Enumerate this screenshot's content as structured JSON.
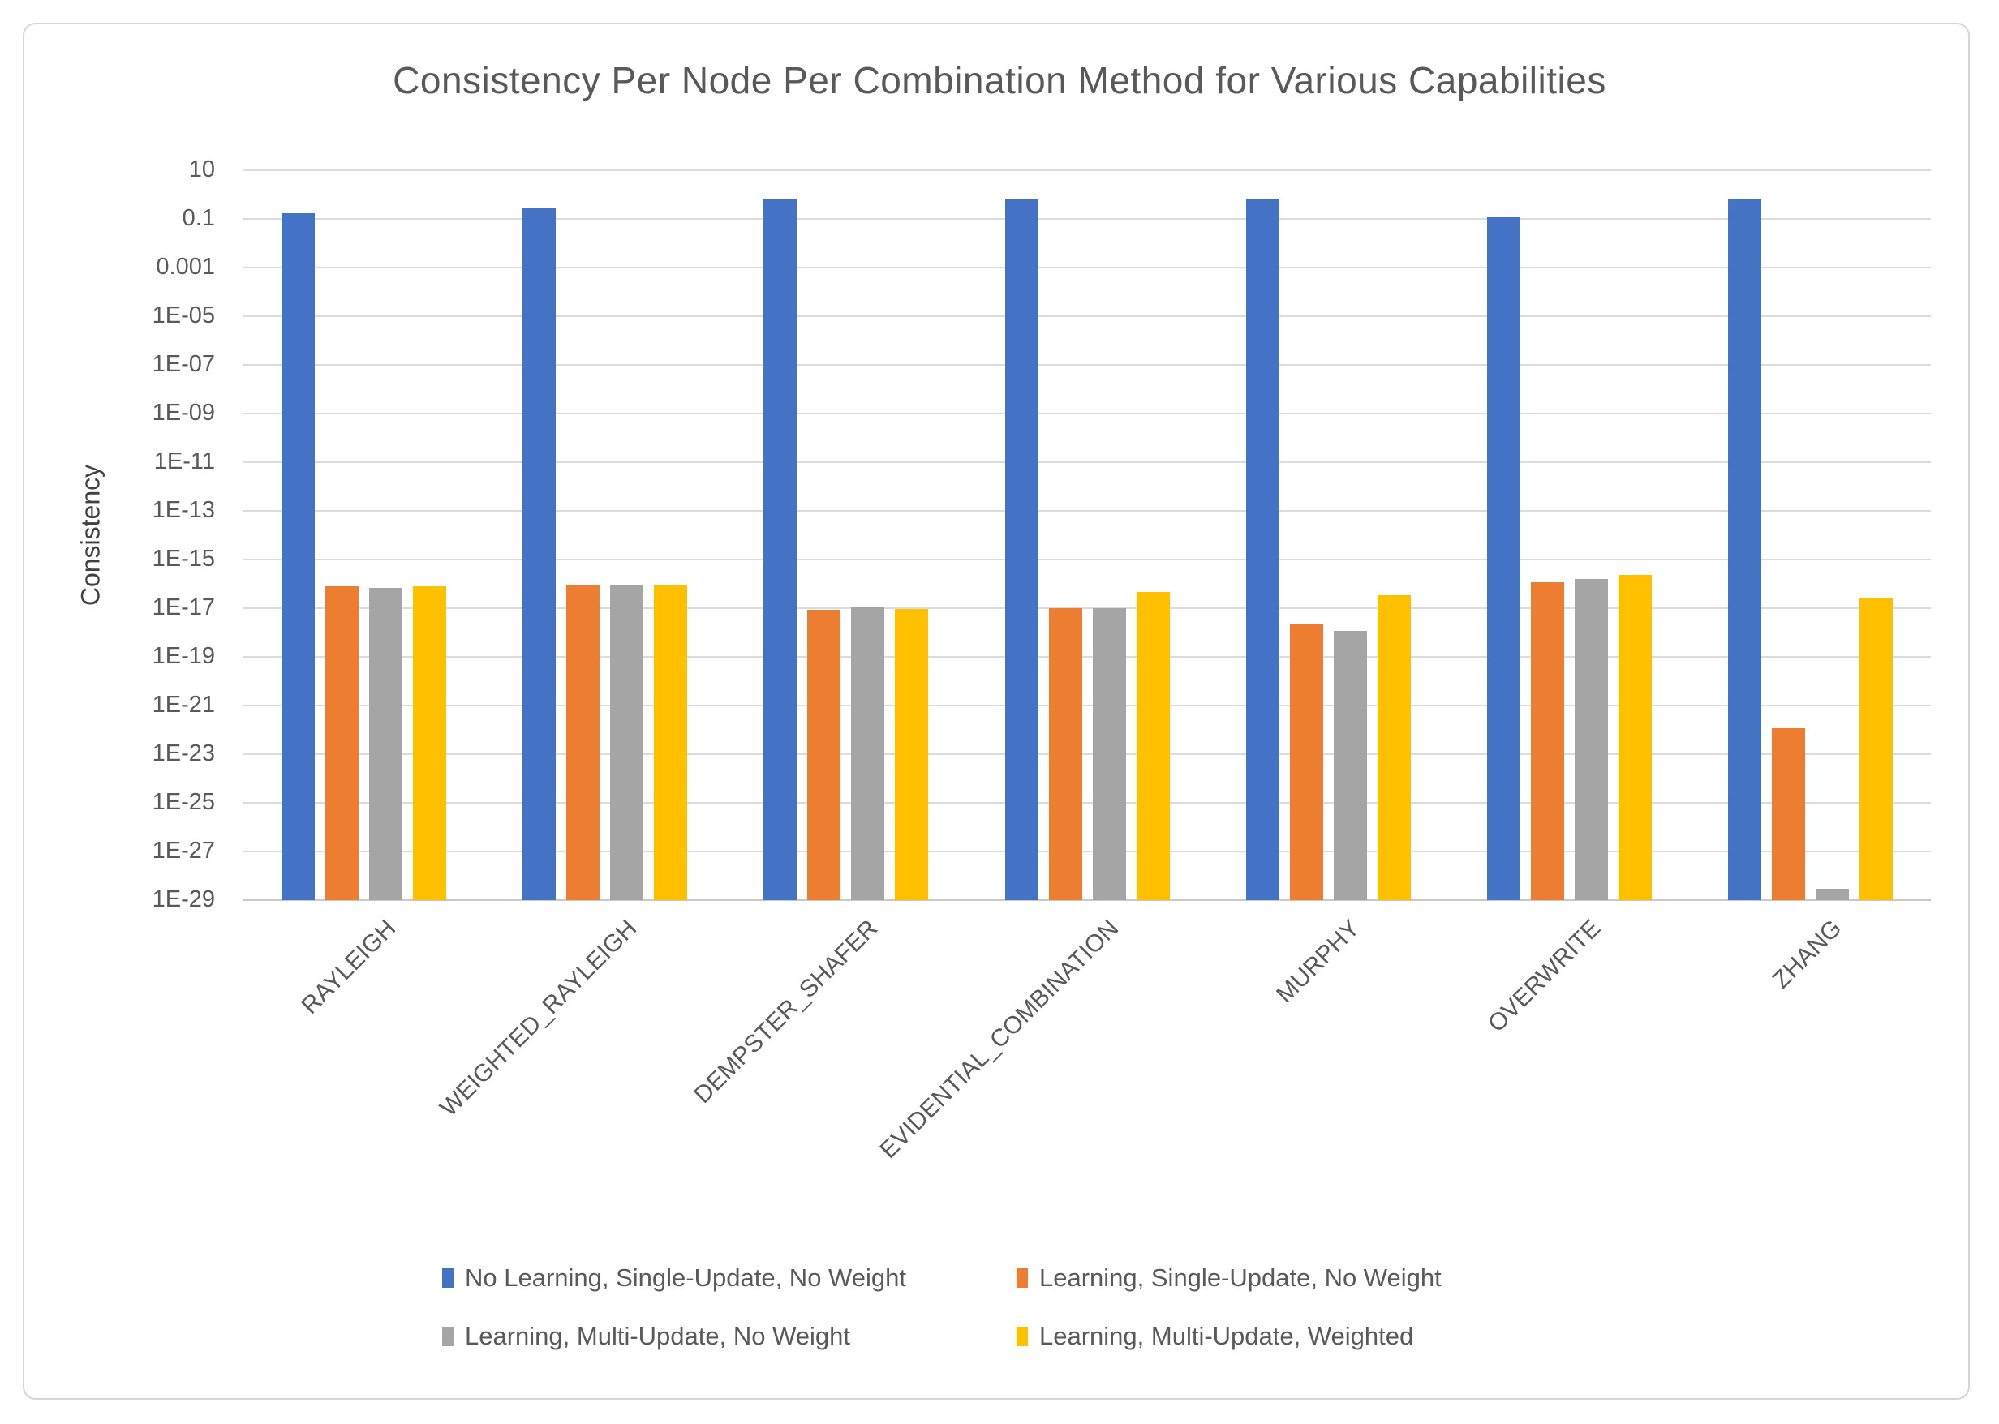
{
  "title": "Consistency Per Node Per Combination Method for Various Capabilities",
  "y_axis": {
    "label": "Consistency",
    "ticks": [
      "10",
      "0.1",
      "0.001",
      "1E-05",
      "1E-07",
      "1E-09",
      "1E-11",
      "1E-13",
      "1E-15",
      "1E-17",
      "1E-19",
      "1E-21",
      "1E-23",
      "1E-25",
      "1E-27",
      "1E-29"
    ]
  },
  "legend": {
    "items": [
      {
        "label": "No Learning, Single-Update, No Weight",
        "color": "#4472C4"
      },
      {
        "label": "Learning, Single-Update, No Weight",
        "color": "#ED7D31"
      },
      {
        "label": "Learning, Multi-Update, No Weight",
        "color": "#A5A5A5"
      },
      {
        "label": "Learning, Multi-Update, Weighted",
        "color": "#FFC000"
      }
    ]
  },
  "colors": {
    "title_text": "#595959",
    "axis_text": "#595959",
    "gridline": "#DCDCDC",
    "series_blue": "#4472C4",
    "series_orange": "#ED7D31",
    "series_gray": "#A5A5A5",
    "series_yellow": "#FFC000"
  },
  "chart_data": {
    "type": "bar",
    "title": "Consistency Per Node Per Combination Method for Various Capabilities",
    "xlabel": "",
    "ylabel": "Consistency",
    "y_scale": "log",
    "ylim": [
      1e-29,
      10
    ],
    "gridline_step_decades": 2,
    "grid": true,
    "legend_position": "bottom",
    "categories": [
      "RAYLEIGH",
      "WEIGHTED_RAYLEIGH",
      "DEMPSTER_SHAFER",
      "EVIDENTIAL_COMBINATION",
      "MURPHY",
      "OVERWRITE",
      "ZHANG"
    ],
    "series": [
      {
        "name": "No Learning, Single-Update, No Weight",
        "color": "#4472C4",
        "values": [
          0.17,
          0.28,
          0.7,
          0.7,
          0.7,
          0.12,
          0.7
        ]
      },
      {
        "name": "Learning, Single-Update, No Weight",
        "color": "#ED7D31",
        "values": [
          8e-17,
          9e-17,
          8.5e-18,
          1e-17,
          2.3e-18,
          1.2e-16,
          1.2e-22
        ]
      },
      {
        "name": "Learning, Multi-Update, No Weight",
        "color": "#A5A5A5",
        "values": [
          7e-17,
          9e-17,
          1.05e-17,
          1e-17,
          1.2e-18,
          1.6e-16,
          3e-29
        ]
      },
      {
        "name": "Learning, Multi-Update, Weighted",
        "color": "#FFC000",
        "values": [
          8e-17,
          9e-17,
          9e-18,
          4.5e-17,
          3.5e-17,
          2.3e-16,
          2.6e-17
        ]
      }
    ]
  }
}
